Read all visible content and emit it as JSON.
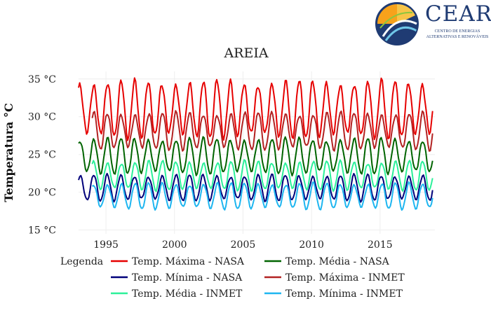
{
  "logo": {
    "name": "CEAR",
    "subtitle_line1": "Centro de Energias",
    "subtitle_line2": "Alternativas e Renováveis"
  },
  "chart_data": {
    "type": "line",
    "title": "AREIA",
    "xlabel": "",
    "ylabel": "Temperatura °C",
    "xlim": [
      1993.0,
      2019.0
    ],
    "ylim": [
      14.5,
      36
    ],
    "xticks": [
      1995,
      2000,
      2005,
      2010,
      2015
    ],
    "yticks": [
      15,
      20,
      25,
      30,
      35
    ],
    "ytick_labels": [
      "15 °C",
      "20 °C",
      "25 °C",
      "30 °C",
      "35 °C"
    ],
    "grid": true,
    "legend_title": "Legenda",
    "legend_position": "bottom",
    "series": [
      {
        "name": "Temp. Máxima - NASA",
        "color": "#e60000",
        "x_start": 1993.0,
        "x_end": 2018.9,
        "annual_mean": 31.0,
        "amplitude": 3.5,
        "phase": 0.1
      },
      {
        "name": "Temp. Média - NASA",
        "color": "#006400",
        "x_start": 1993.0,
        "x_end": 2018.9,
        "annual_mean": 24.8,
        "amplitude": 2.2,
        "phase": 0.1
      },
      {
        "name": "Temp. Mínima - NASA",
        "color": "#00007a",
        "x_start": 1993.0,
        "x_end": 2018.9,
        "annual_mean": 20.6,
        "amplitude": 1.6,
        "phase": 0.1
      },
      {
        "name": "Temp. Máxima - INMET",
        "color": "#b22222",
        "x_start": 1994.0,
        "x_end": 2018.9,
        "annual_mean": 28.1,
        "amplitude": 2.3,
        "phase": 0.12
      },
      {
        "name": "Temp. Média - INMET",
        "color": "#2cf09a",
        "x_start": 1994.0,
        "x_end": 2018.9,
        "annual_mean": 22.2,
        "amplitude": 1.8,
        "phase": 0.12
      },
      {
        "name": "Temp. Mínima - INMET",
        "color": "#1eb6f0",
        "x_start": 1994.0,
        "x_end": 2018.9,
        "annual_mean": 19.5,
        "amplitude": 1.6,
        "phase": 0.12
      }
    ]
  }
}
